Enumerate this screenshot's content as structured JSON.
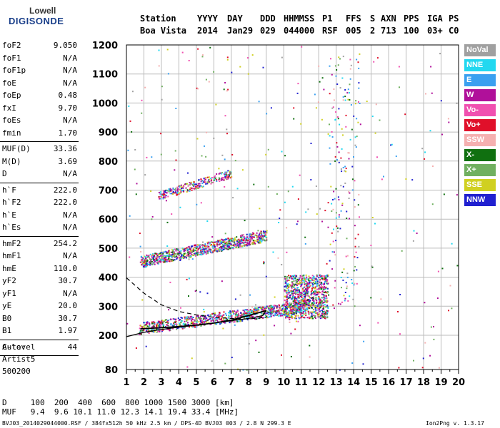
{
  "logo": {
    "line1": "Lowell",
    "line2": "DIGISONDE"
  },
  "header": {
    "labels": [
      "Station",
      "YYYY",
      "DAY",
      "DDD",
      "HHMMSS",
      "P1",
      "FFS",
      "S",
      "AXN",
      "PPS",
      "IGA",
      "PS"
    ],
    "values": [
      "Boa Vista",
      "2014",
      "Jan29",
      "029",
      "044000",
      "RSF",
      "005",
      "2",
      "713",
      "100",
      "03+",
      "C0"
    ]
  },
  "params": {
    "group1": [
      {
        "k": "foF2",
        "v": "9.050"
      },
      {
        "k": "foF1",
        "v": "N/A"
      },
      {
        "k": "foF1p",
        "v": "N/A"
      },
      {
        "k": "foE",
        "v": "N/A"
      },
      {
        "k": "foEp",
        "v": "0.48"
      },
      {
        "k": "fxI",
        "v": "9.70"
      },
      {
        "k": "foEs",
        "v": "N/A"
      },
      {
        "k": "fmin",
        "v": "1.70"
      }
    ],
    "group2": [
      {
        "k": "MUF(D)",
        "v": "33.36"
      },
      {
        "k": "M(D)",
        "v": "3.69"
      },
      {
        "k": "D",
        "v": "N/A"
      }
    ],
    "group3": [
      {
        "k": "h`F",
        "v": "222.0"
      },
      {
        "k": "h`F2",
        "v": "222.0"
      },
      {
        "k": "h`E",
        "v": "N/A"
      },
      {
        "k": "h`Es",
        "v": "N/A"
      }
    ],
    "group4": [
      {
        "k": "hmF2",
        "v": "254.2"
      },
      {
        "k": "hmF1",
        "v": "N/A"
      },
      {
        "k": "hmE",
        "v": "110.0"
      },
      {
        "k": "yF2",
        "v": "30.7"
      },
      {
        "k": "yF1",
        "v": "N/A"
      },
      {
        "k": "yE",
        "v": "20.0"
      },
      {
        "k": "B0",
        "v": "30.7"
      },
      {
        "k": "B1",
        "v": "1.97"
      }
    ],
    "group5": [
      {
        "k": "C-level",
        "v": "44"
      }
    ]
  },
  "auto": {
    "line1": "Auto:",
    "line2": "Artist5",
    "line3": "500200"
  },
  "muf_table": {
    "d_row": "D     100  200  400  600  800 1000 1500 3000 [km]",
    "muf_row": "MUF   9.4  9.6 10.1 11.0 12.3 14.1 19.4 33.4 [MHz]"
  },
  "bottom_line": "BVJ03_2014029044000.RSF / 384fx512h 50 kHz 2.5 km / DPS-4D BVJ03 003 / 2.8 N 299.3 E",
  "version": "Ion2Png v. 1.3.17",
  "legend": [
    {
      "label": "NoVal",
      "color": "#a0a0a0"
    },
    {
      "label": "NNE",
      "color": "#22d8f0"
    },
    {
      "label": "E",
      "color": "#3aa0f0"
    },
    {
      "label": "W",
      "color": "#b0109a"
    },
    {
      "label": "Vo-",
      "color": "#f050b0"
    },
    {
      "label": "Vo+",
      "color": "#e0102a"
    },
    {
      "label": "SSW",
      "color": "#f5b0b0"
    },
    {
      "label": "X-",
      "color": "#107010"
    },
    {
      "label": "X+",
      "color": "#70b060"
    },
    {
      "label": "SSE",
      "color": "#d0d020"
    },
    {
      "label": "NNW",
      "color": "#2020d0"
    }
  ],
  "chart_data": {
    "type": "scatter",
    "title": "",
    "xlabel": "",
    "ylabel": "",
    "xlim": [
      1,
      20
    ],
    "ylim": [
      80,
      1200
    ],
    "xticks": [
      1,
      2,
      3,
      4,
      5,
      6,
      7,
      8,
      9,
      10,
      11,
      12,
      13,
      14,
      15,
      16,
      17,
      18,
      19,
      20
    ],
    "yticks": [
      80,
      200,
      300,
      400,
      500,
      600,
      700,
      800,
      900,
      1000,
      1100,
      1200
    ],
    "grid": true,
    "traces": [
      {
        "name": "F2 1st hop",
        "x_range": [
          1.7,
          11.2
        ],
        "y_start": 225,
        "y_end": 300,
        "density": "high"
      },
      {
        "name": "F2 2nd hop",
        "x_range": [
          1.8,
          9.0
        ],
        "y_start": 455,
        "y_end": 545,
        "density": "high"
      },
      {
        "name": "F2 3rd hop",
        "x_range": [
          2.8,
          7.0
        ],
        "y_start": 680,
        "y_end": 760,
        "density": "medium"
      },
      {
        "name": "F2 cusp",
        "x_range": [
          10.0,
          12.5
        ],
        "y_start": 270,
        "y_end": 330,
        "density": "high"
      }
    ],
    "profile_solid": [
      [
        1,
        195
      ],
      [
        2,
        210
      ],
      [
        3,
        220
      ],
      [
        4,
        228
      ],
      [
        5,
        235
      ],
      [
        6,
        242
      ],
      [
        7,
        250
      ],
      [
        8,
        258
      ],
      [
        8.8,
        268
      ],
      [
        9.0,
        285
      ]
    ],
    "profile_dashed": [
      [
        1,
        398
      ],
      [
        2,
        345
      ],
      [
        3,
        305
      ],
      [
        4,
        282
      ],
      [
        5,
        270
      ],
      [
        6,
        262
      ],
      [
        7,
        258
      ],
      [
        8,
        256
      ],
      [
        9,
        262
      ]
    ],
    "trace_fit": [
      [
        1.8,
        222
      ],
      [
        3,
        226
      ],
      [
        4,
        230
      ],
      [
        5,
        235
      ],
      [
        6,
        242
      ],
      [
        7,
        252
      ],
      [
        8,
        268
      ],
      [
        9,
        285
      ]
    ]
  }
}
